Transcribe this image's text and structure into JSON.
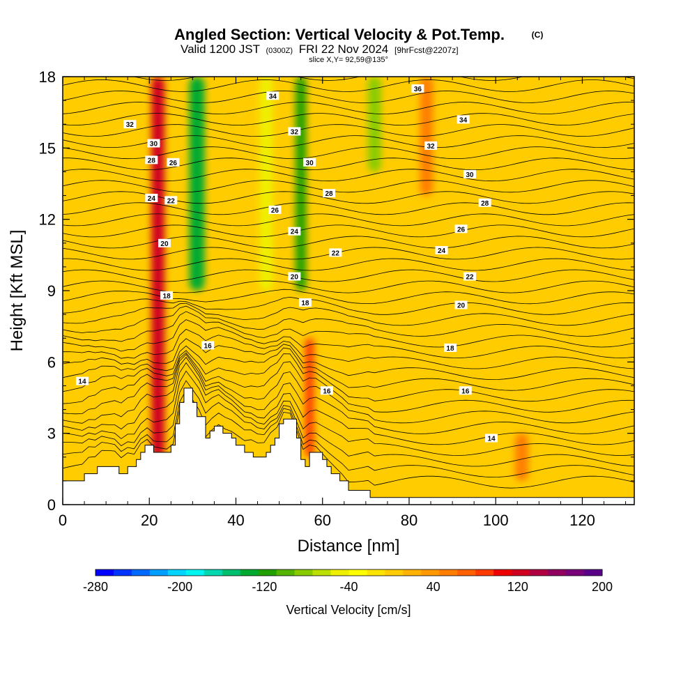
{
  "header": {
    "title": "Angled Section: Vertical Velocity & Pot.Temp.",
    "title_mark": "(C)",
    "valid_main_a": "Valid 1200 JST",
    "valid_small_a": "(0300Z)",
    "valid_main_b": "FRI 22 Nov 2024",
    "valid_small_b": "[9hrFcst@2207z]",
    "slice": "slice X,Y= 92,59@135°"
  },
  "chart_data": {
    "type": "heatmap",
    "xlabel": "Distance [nm]",
    "ylabel": "Height [Kft MSL]",
    "xlim": [
      0,
      132
    ],
    "ylim": [
      0,
      18
    ],
    "x_ticks": [
      0,
      20,
      40,
      60,
      80,
      100,
      120
    ],
    "x_tick_labels": [
      "0",
      "20",
      "40",
      "60",
      "80",
      "100",
      "120"
    ],
    "y_ticks": [
      0,
      3,
      6,
      9,
      12,
      15,
      18
    ],
    "y_tick_labels": [
      "0",
      "3",
      "6",
      "9",
      "12",
      "15",
      "18"
    ],
    "fill_variable": "Vertical Velocity [cm/s]",
    "contour_variable": "Pot.Temp. (C)",
    "terrain": [
      [
        0,
        1.0
      ],
      [
        5,
        1.0
      ],
      [
        5,
        1.3
      ],
      [
        8,
        1.3
      ],
      [
        8,
        1.6
      ],
      [
        13,
        1.6
      ],
      [
        13,
        1.3
      ],
      [
        15,
        1.3
      ],
      [
        15,
        1.6
      ],
      [
        17,
        1.6
      ],
      [
        17,
        1.9
      ],
      [
        18,
        1.9
      ],
      [
        18,
        2.2
      ],
      [
        19,
        2.2
      ],
      [
        19,
        2.5
      ],
      [
        21,
        2.5
      ],
      [
        21,
        2.2
      ],
      [
        25,
        2.2
      ],
      [
        25,
        2.5
      ],
      [
        26,
        2.5
      ],
      [
        26,
        3.4
      ],
      [
        27,
        3.4
      ],
      [
        27,
        4.3
      ],
      [
        28,
        4.3
      ],
      [
        28,
        4.9
      ],
      [
        30,
        4.9
      ],
      [
        30,
        4.3
      ],
      [
        31,
        4.3
      ],
      [
        31,
        3.7
      ],
      [
        33,
        3.7
      ],
      [
        33,
        2.8
      ],
      [
        34,
        2.8
      ],
      [
        34,
        3.1
      ],
      [
        35,
        3.1
      ],
      [
        35,
        3.3
      ],
      [
        37,
        3.3
      ],
      [
        37,
        3.0
      ],
      [
        39,
        3.0
      ],
      [
        39,
        2.8
      ],
      [
        40,
        2.8
      ],
      [
        40,
        2.5
      ],
      [
        42,
        2.5
      ],
      [
        42,
        2.2
      ],
      [
        44,
        2.2
      ],
      [
        44,
        2.0
      ],
      [
        47,
        2.0
      ],
      [
        47,
        2.2
      ],
      [
        48,
        2.2
      ],
      [
        48,
        2.5
      ],
      [
        49,
        2.5
      ],
      [
        49,
        2.8
      ],
      [
        50,
        2.8
      ],
      [
        50,
        3.4
      ],
      [
        51,
        3.4
      ],
      [
        51,
        3.6
      ],
      [
        54,
        3.6
      ],
      [
        54,
        2.8
      ],
      [
        55,
        2.8
      ],
      [
        55,
        1.9
      ],
      [
        56,
        1.9
      ],
      [
        56,
        1.6
      ],
      [
        57,
        1.6
      ],
      [
        57,
        2.2
      ],
      [
        60,
        2.2
      ],
      [
        60,
        1.9
      ],
      [
        61,
        1.9
      ],
      [
        61,
        1.6
      ],
      [
        62,
        1.6
      ],
      [
        62,
        1.3
      ],
      [
        64,
        1.3
      ],
      [
        64,
        1.0
      ],
      [
        66,
        1.0
      ],
      [
        66,
        0.6
      ],
      [
        68,
        0.6
      ],
      [
        68,
        0.6
      ],
      [
        71,
        0.6
      ],
      [
        71,
        0.3
      ],
      [
        132,
        0.3
      ]
    ],
    "vertical_velocity_features": [
      {
        "x": 22,
        "y": [
          2,
          18
        ],
        "w": 3,
        "value": 120
      },
      {
        "x": 31,
        "y": [
          9,
          18
        ],
        "w": 3.5,
        "value": -140
      },
      {
        "x": 55,
        "y": [
          9,
          18
        ],
        "w": 2.5,
        "value": -110
      },
      {
        "x": 57,
        "y": [
          2,
          7
        ],
        "w": 2,
        "value": 80
      },
      {
        "x": 47,
        "y": [
          9,
          18
        ],
        "w": 3,
        "value": -50
      },
      {
        "x": 72,
        "y": [
          14,
          18
        ],
        "w": 3,
        "value": -80
      },
      {
        "x": 84,
        "y": [
          13,
          18
        ],
        "w": 3,
        "value": 60
      },
      {
        "x": 106,
        "y": [
          1,
          3
        ],
        "w": 3,
        "value": 60
      }
    ],
    "contour_labels": [
      {
        "text": "14",
        "x": 4.5,
        "y": 5.2
      },
      {
        "text": "16",
        "x": 33.5,
        "y": 6.7
      },
      {
        "text": "16",
        "x": 61,
        "y": 4.8
      },
      {
        "text": "16",
        "x": 93,
        "y": 4.8
      },
      {
        "text": "14",
        "x": 99,
        "y": 2.8
      },
      {
        "text": "18",
        "x": 24,
        "y": 8.8
      },
      {
        "text": "18",
        "x": 56,
        "y": 8.5
      },
      {
        "text": "18",
        "x": 89.5,
        "y": 6.6
      },
      {
        "text": "20",
        "x": 23.5,
        "y": 11.0
      },
      {
        "text": "20",
        "x": 53.5,
        "y": 9.6
      },
      {
        "text": "20",
        "x": 92,
        "y": 8.4
      },
      {
        "text": "22",
        "x": 25,
        "y": 12.8
      },
      {
        "text": "22",
        "x": 63,
        "y": 10.6
      },
      {
        "text": "22",
        "x": 94,
        "y": 9.6
      },
      {
        "text": "24",
        "x": 20.5,
        "y": 12.9
      },
      {
        "text": "24",
        "x": 53.5,
        "y": 11.5
      },
      {
        "text": "24",
        "x": 87.5,
        "y": 10.7
      },
      {
        "text": "26",
        "x": 25.5,
        "y": 14.4
      },
      {
        "text": "26",
        "x": 49,
        "y": 12.4
      },
      {
        "text": "26",
        "x": 92,
        "y": 11.6
      },
      {
        "text": "28",
        "x": 20.5,
        "y": 14.5
      },
      {
        "text": "28",
        "x": 61.5,
        "y": 13.1
      },
      {
        "text": "28",
        "x": 97.5,
        "y": 12.7
      },
      {
        "text": "30",
        "x": 21,
        "y": 15.2
      },
      {
        "text": "30",
        "x": 57,
        "y": 14.4
      },
      {
        "text": "30",
        "x": 94,
        "y": 13.9
      },
      {
        "text": "32",
        "x": 15.5,
        "y": 16.0
      },
      {
        "text": "32",
        "x": 53.5,
        "y": 15.7
      },
      {
        "text": "32",
        "x": 85,
        "y": 15.1
      },
      {
        "text": "34",
        "x": 48.5,
        "y": 17.2
      },
      {
        "text": "34",
        "x": 92.5,
        "y": 16.2
      },
      {
        "text": "36",
        "x": 82,
        "y": 17.5
      }
    ]
  },
  "colorbar": {
    "colors": [
      "#0000ff",
      "#0035ff",
      "#006aff",
      "#009fff",
      "#00d4ff",
      "#00f5f0",
      "#00d8b0",
      "#00c070",
      "#00aa30",
      "#22a000",
      "#55b400",
      "#88cc00",
      "#bbe000",
      "#eef000",
      "#ffff00",
      "#ffe400",
      "#ffcc00",
      "#ffb200",
      "#ff9900",
      "#ff7e00",
      "#ff6000",
      "#ff3a00",
      "#ee0000",
      "#d00020",
      "#b00040",
      "#900060",
      "#780078",
      "#5a0088"
    ],
    "tick_labels": [
      "-280",
      "-200",
      "-120",
      "-40",
      "40",
      "120",
      "200"
    ],
    "tick_values": [
      -280,
      -200,
      -120,
      -40,
      40,
      120,
      200
    ],
    "min": -280,
    "max": 200,
    "label": "Vertical Velocity [cm/s]"
  }
}
